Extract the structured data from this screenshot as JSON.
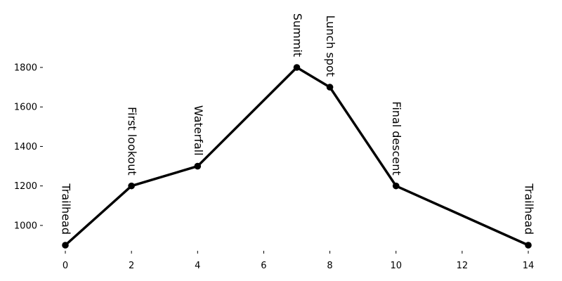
{
  "chart_data": {
    "type": "line",
    "title": "",
    "xlabel": "",
    "ylabel": "",
    "xlim": [
      -0.25,
      14.25
    ],
    "ylim": [
      850,
      2050
    ],
    "grid": false,
    "frame": false,
    "line_color": "#000000",
    "x_ticks": [
      0,
      2,
      4,
      6,
      8,
      10,
      12,
      14
    ],
    "y_ticks": [
      1000,
      1200,
      1400,
      1600,
      1800
    ],
    "x_tick_labels": [
      "0",
      "2",
      "4",
      "6",
      "8",
      "10",
      "12",
      "14"
    ],
    "y_tick_labels": [
      "1000",
      "1200",
      "1400",
      "1600",
      "1800"
    ],
    "points": [
      {
        "x": 0,
        "y": 900,
        "label": "Trailhead"
      },
      {
        "x": 2,
        "y": 1200,
        "label": "First lookout"
      },
      {
        "x": 4,
        "y": 1300,
        "label": "Waterfall"
      },
      {
        "x": 7,
        "y": 1800,
        "label": "Summit"
      },
      {
        "x": 8,
        "y": 1700,
        "label": "Lunch spot"
      },
      {
        "x": 10,
        "y": 1200,
        "label": "Final descent"
      },
      {
        "x": 14,
        "y": 900,
        "label": "Trailhead"
      }
    ]
  }
}
